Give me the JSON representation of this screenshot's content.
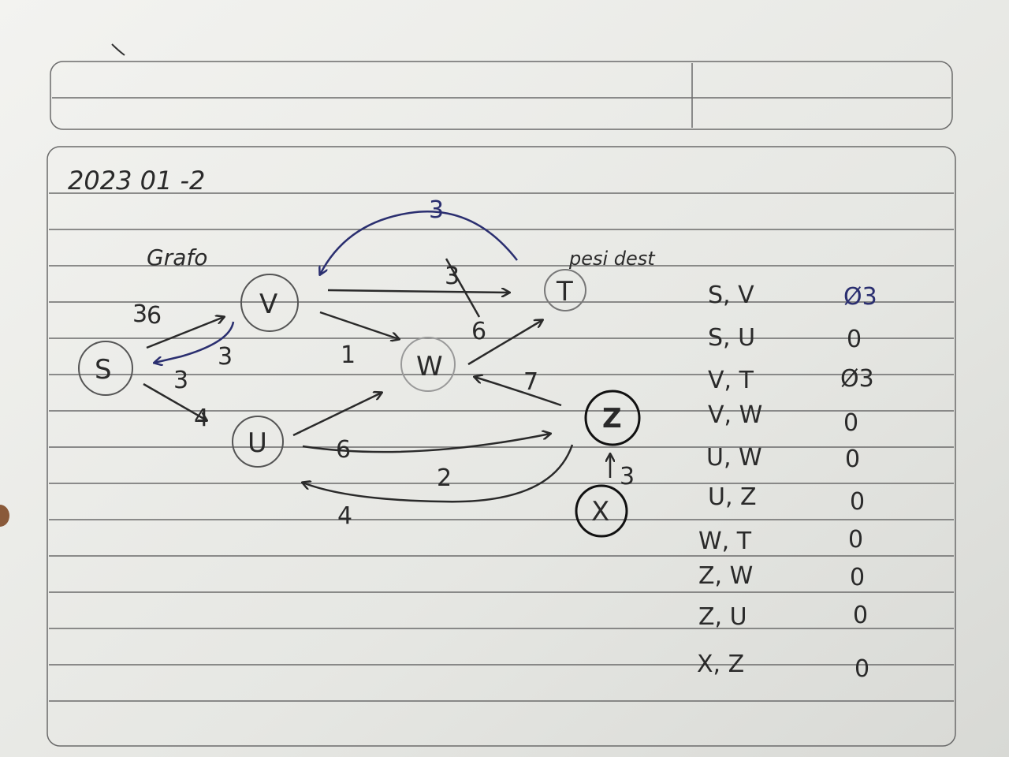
{
  "date": "2023 01 -2",
  "title": "Grafo",
  "annotation": "pesi dest",
  "nodes": {
    "s": "S",
    "v": "V",
    "t": "T",
    "w": "W",
    "u": "U",
    "z": "Z",
    "x": "X"
  },
  "edge_labels": {
    "sv_top": "3",
    "sv_strike": "6",
    "vs": "3",
    "vs_lower": "3",
    "su": "4",
    "vt_blue": "3",
    "vt": "3",
    "tv_black": "6",
    "vw": "1",
    "zw": "7",
    "uw": "6",
    "uz": "2",
    "zu": "4",
    "xz": "3"
  },
  "table": [
    {
      "edge": "S, V",
      "value": "Ø3"
    },
    {
      "edge": "S, U",
      "value": "0"
    },
    {
      "edge": "V, T",
      "value": "Ø3"
    },
    {
      "edge": "V, W",
      "value": "0"
    },
    {
      "edge": "U, W",
      "value": "0"
    },
    {
      "edge": "U, Z",
      "value": "0"
    },
    {
      "edge": "W, T",
      "value": "0"
    },
    {
      "edge": "Z, W",
      "value": "0"
    },
    {
      "edge": "Z, U",
      "value": "0"
    },
    {
      "edge": "X, Z",
      "value": "0"
    }
  ],
  "colors": {
    "paper": "#ecedea",
    "ink": "#2a2a2a",
    "blue_ink": "#2b2f70",
    "rule": "#6a6a6a"
  }
}
